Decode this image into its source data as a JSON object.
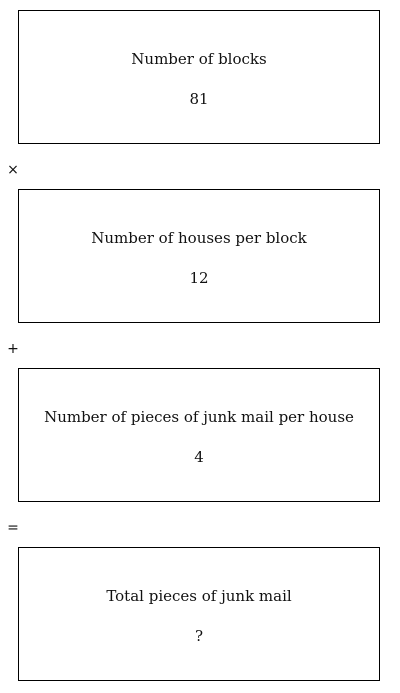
{
  "boxes": [
    {
      "label": "Number of blocks",
      "value": "81"
    },
    {
      "label": "Number of houses per block",
      "value": "12"
    },
    {
      "label": "Number of pieces of junk mail per house",
      "value": "4"
    },
    {
      "label": "Total pieces of junk mail",
      "value": "?"
    }
  ],
  "operators": [
    "×",
    "+",
    "="
  ]
}
